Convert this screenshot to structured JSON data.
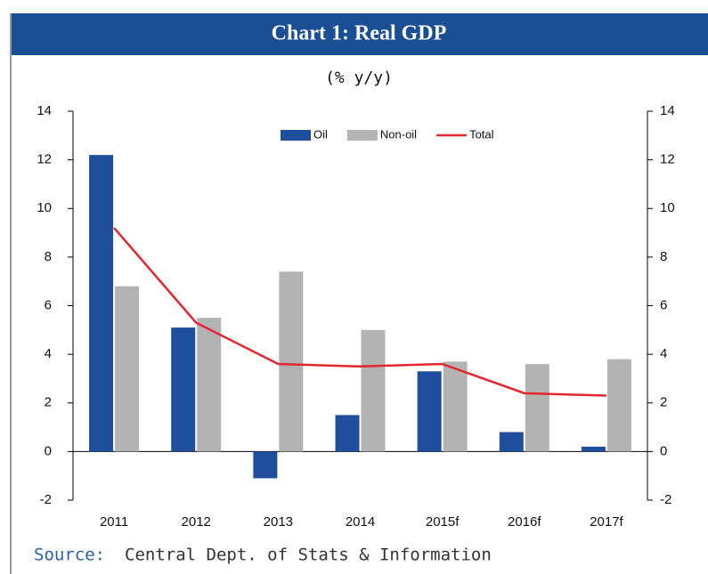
{
  "chart_data": {
    "type": "bar",
    "title": "Chart 1: Real GDP",
    "subtitle": "(% y/y)",
    "source_label": "Source:",
    "source_text": "Central Dept. of Stats & Information",
    "categories": [
      "2011",
      "2012",
      "2013",
      "2014",
      "2015f",
      "2016f",
      "2017f"
    ],
    "series": [
      {
        "name": "Oil",
        "type": "bar",
        "color": "#1f4f9c",
        "values": [
          12.2,
          5.1,
          -1.1,
          1.5,
          3.3,
          0.8,
          0.2
        ]
      },
      {
        "name": "Non-oil",
        "type": "bar",
        "color": "#b3b3b3",
        "values": [
          6.8,
          5.5,
          7.4,
          5.0,
          3.7,
          3.6,
          3.8
        ]
      },
      {
        "name": "Total",
        "type": "line",
        "color": "#e0282e",
        "values": [
          9.2,
          5.3,
          3.6,
          3.5,
          3.6,
          2.4,
          2.3
        ]
      }
    ],
    "ylim": [
      -2,
      14
    ],
    "yticks": [
      -2,
      0,
      2,
      4,
      6,
      8,
      10,
      12,
      14
    ],
    "y2lim": [
      -2,
      14
    ],
    "y2ticks": [
      -2,
      0,
      2,
      4,
      6,
      8,
      10,
      12,
      14
    ],
    "legend": "top"
  }
}
